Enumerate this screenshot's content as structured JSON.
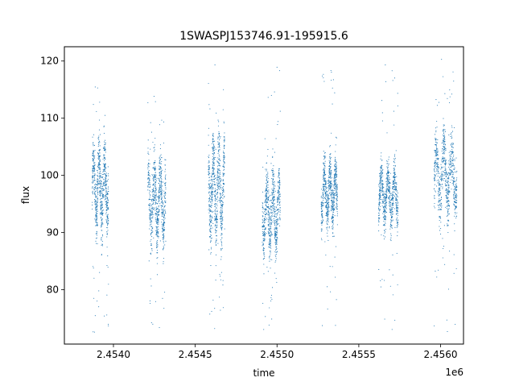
{
  "chart_data": {
    "type": "scatter",
    "title": "1SWASPJ153746.91-195915.6",
    "xlabel": "time",
    "ylabel": "flux",
    "x_offset_label": "1e6",
    "xlim": [
      2.4537,
      2.45614
    ],
    "ylim": [
      70.5,
      122.5
    ],
    "x_ticks": [
      2.454,
      2.4545,
      2.455,
      2.4555,
      2.456
    ],
    "x_tick_labels": [
      "2.4540",
      "2.4545",
      "2.4550",
      "2.4555",
      "2.4560"
    ],
    "y_ticks": [
      80,
      90,
      100,
      110,
      120
    ],
    "y_tick_labels": [
      "80",
      "90",
      "100",
      "110",
      "120"
    ],
    "grid": false,
    "legend": "none",
    "marker_color": "#1f77b4",
    "clusters": [
      {
        "x_range": [
          2.45387,
          2.45397
        ],
        "flux_band": [
          87,
          109
        ],
        "flux_range": [
          72.5,
          116
        ]
      },
      {
        "x_range": [
          2.45421,
          2.45432
        ],
        "flux_band": [
          85,
          106
        ],
        "flux_range": [
          73,
          114
        ]
      },
      {
        "x_range": [
          2.45458,
          2.45468
        ],
        "flux_band": [
          85,
          110
        ],
        "flux_range": [
          72.5,
          120
        ]
      },
      {
        "x_range": [
          2.45491,
          2.45502
        ],
        "flux_band": [
          84,
          103
        ],
        "flux_range": [
          73,
          119.5
        ]
      },
      {
        "x_range": [
          2.45527,
          2.45537
        ],
        "flux_band": [
          89,
          105
        ],
        "flux_range": [
          72.5,
          118.5
        ]
      },
      {
        "x_range": [
          2.45562,
          2.45574
        ],
        "flux_band": [
          89,
          104
        ],
        "flux_range": [
          73,
          119.5
        ]
      },
      {
        "x_range": [
          2.45596,
          2.4561
        ],
        "flux_band": [
          90,
          110
        ],
        "flux_range": [
          72.5,
          120.5
        ]
      }
    ]
  }
}
